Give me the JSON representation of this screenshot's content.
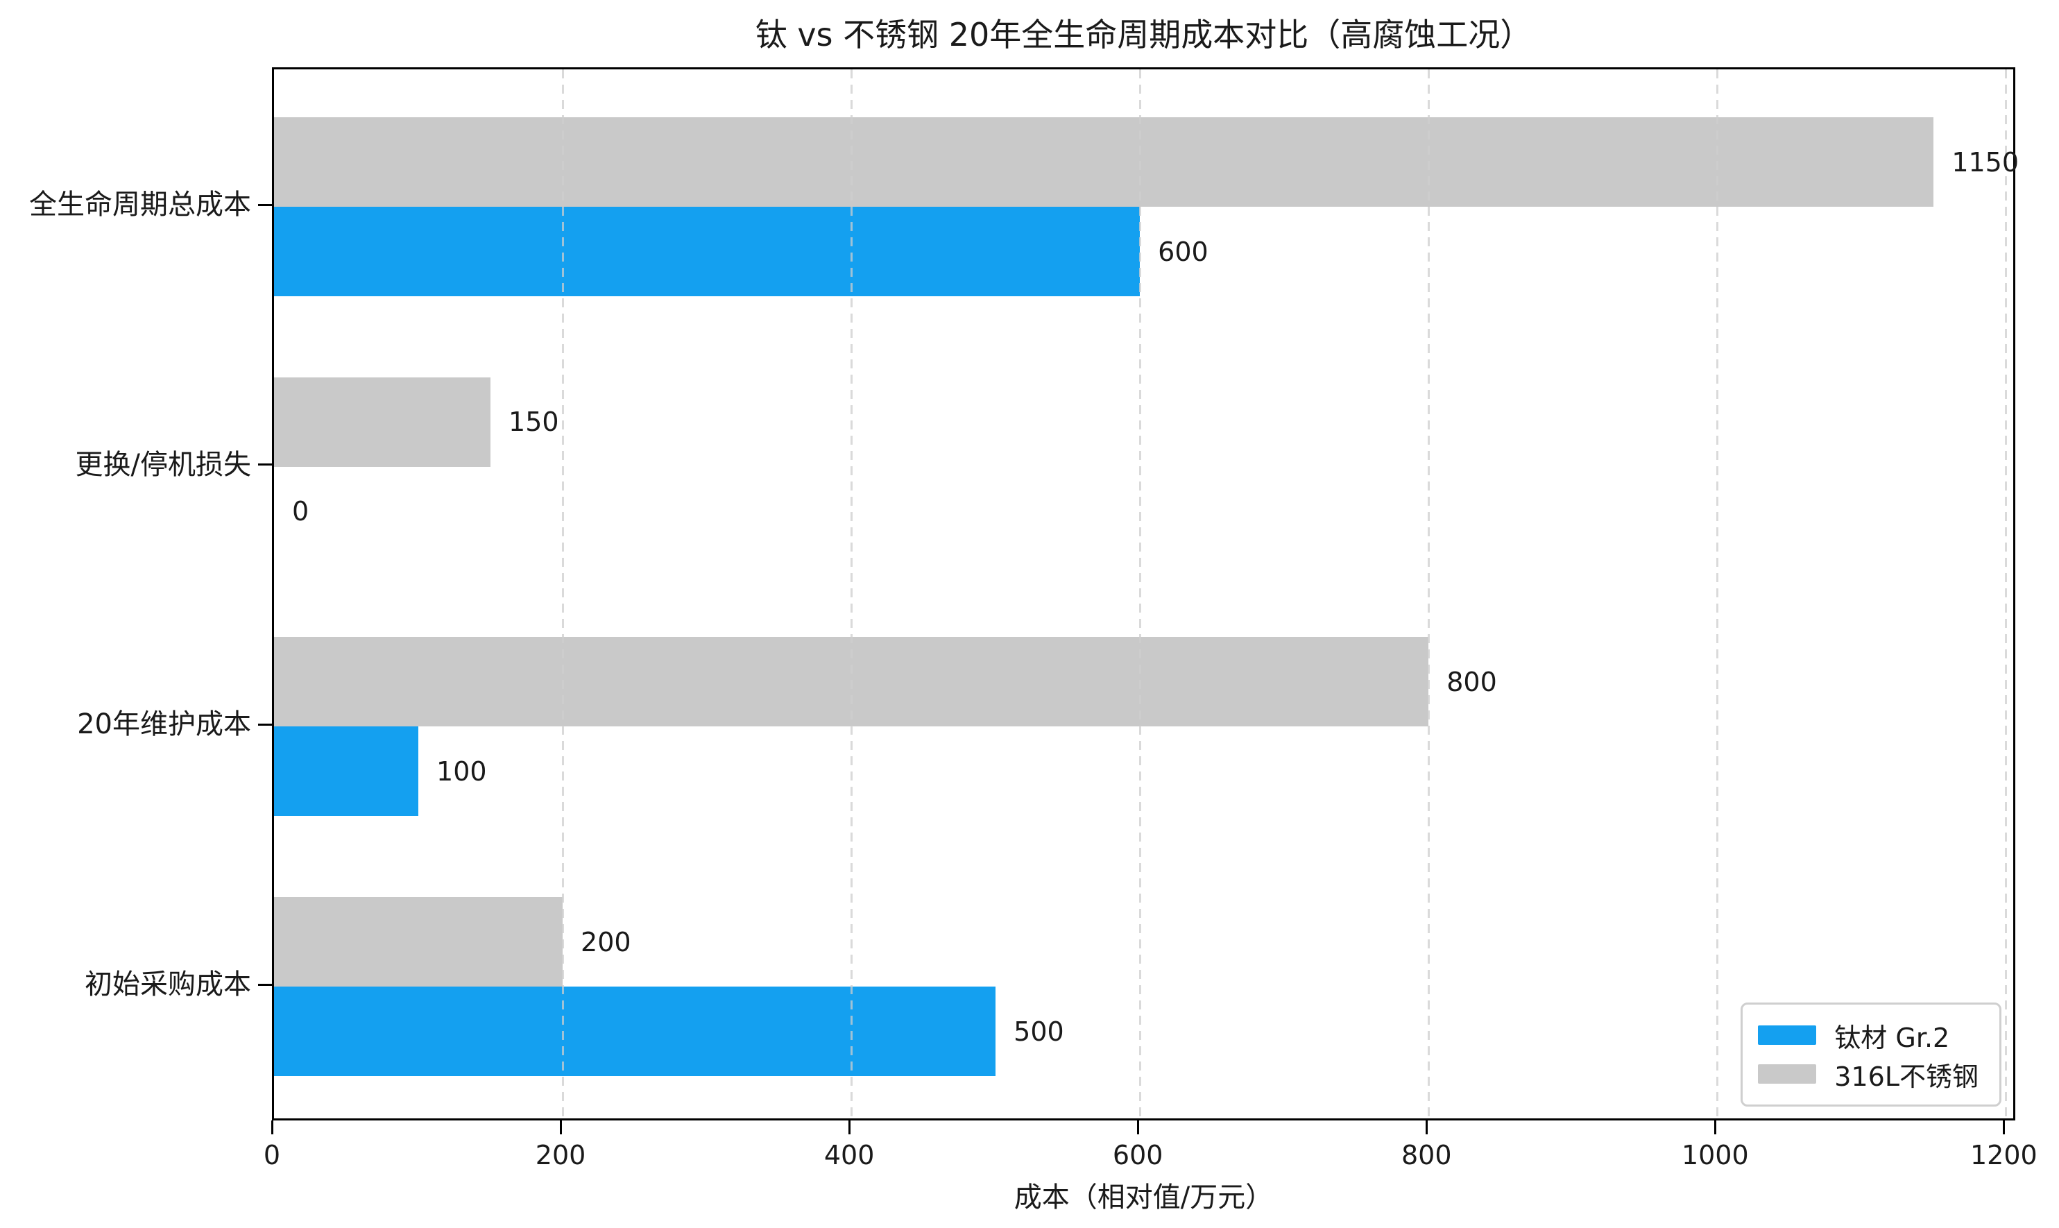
{
  "chart_data": {
    "type": "bar",
    "orientation": "horizontal",
    "title": "钛 vs 不锈钢 20年全生命周期成本对比（高腐蚀工况）",
    "xlabel": "成本（相对值/万元）",
    "ylabel": "",
    "categories_order": "top_to_bottom",
    "categories": [
      "全生命周期总成本",
      "更换/停机损失",
      "20年维护成本",
      "初始采购成本"
    ],
    "series": [
      {
        "name": "钛材 Gr.2",
        "color": "#14A0F0",
        "values": [
          600,
          0,
          100,
          500
        ]
      },
      {
        "name": "316L不锈钢",
        "color": "#C9C9C9",
        "values": [
          1150,
          150,
          800,
          200
        ]
      }
    ],
    "bar_value_labels": true,
    "xlim": [
      0,
      1208
    ],
    "xticks": [
      0,
      200,
      400,
      600,
      800,
      1000,
      1200
    ],
    "xtick_labels": [
      "0",
      "200",
      "400",
      "600",
      "800",
      "1000",
      "1200"
    ],
    "grid": {
      "axis": "x",
      "style": "dashed",
      "color": "#d0d0d0"
    },
    "legend": {
      "position": "lower right"
    },
    "spine_color": "#000000",
    "background_color": "#ffffff"
  }
}
